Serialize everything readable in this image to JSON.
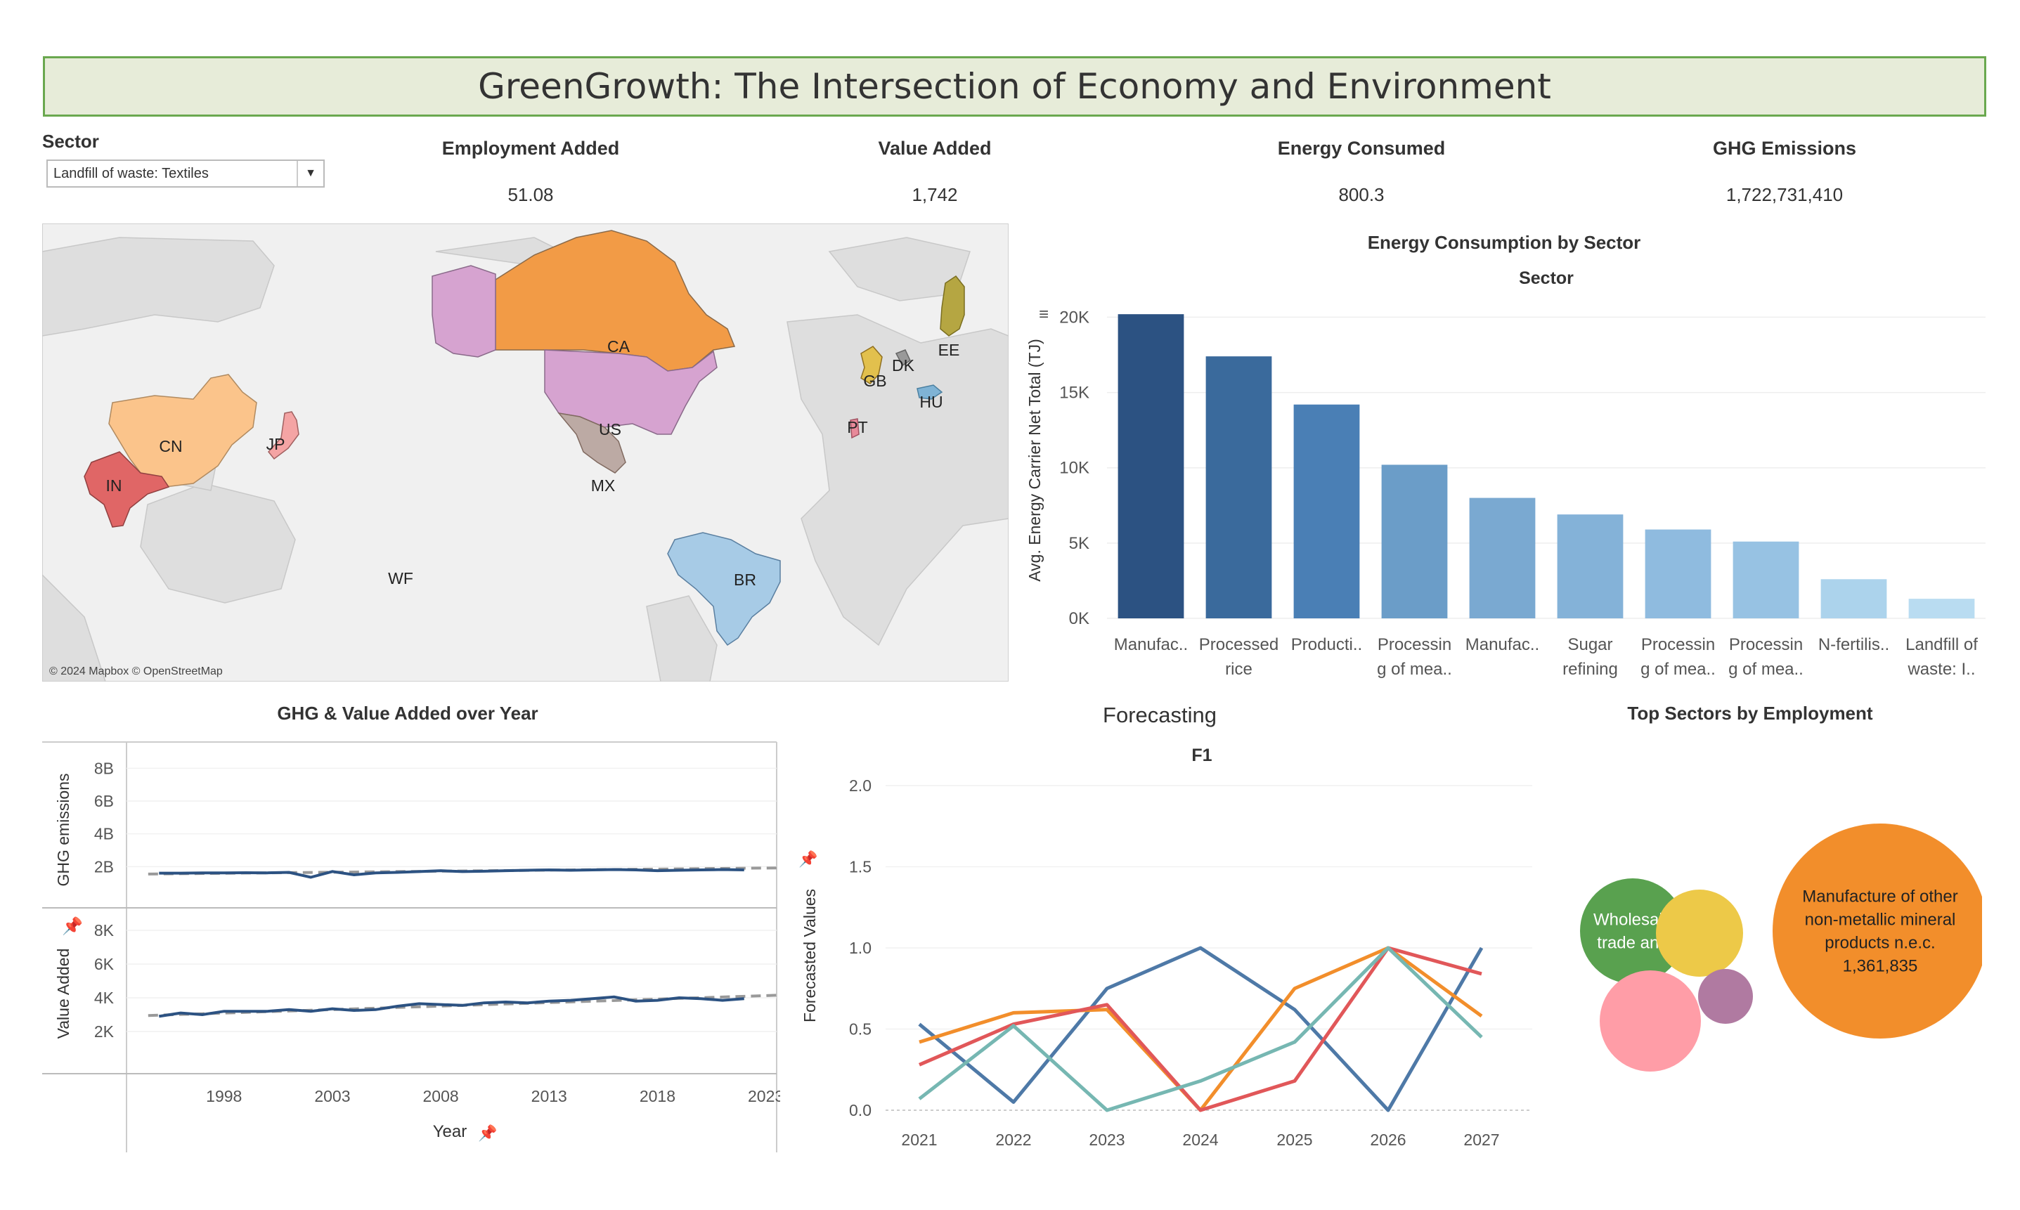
{
  "header": {
    "title": "GreenGrowth: The Intersection of Economy and Environment"
  },
  "filter": {
    "label": "Sector",
    "selected": "Landfill of waste: Textiles"
  },
  "kpis": [
    {
      "label": "Employment Added",
      "value": "51.08"
    },
    {
      "label": "Value Added",
      "value": "1,742"
    },
    {
      "label": "Energy Consumed",
      "value": "800.3"
    },
    {
      "label": "GHG Emissions",
      "value": "1,722,731,410"
    }
  ],
  "map": {
    "attribution": "© 2024 Mapbox © OpenStreetMap",
    "countries": [
      {
        "code": "CA",
        "color": "#f29b46"
      },
      {
        "code": "US",
        "color": "#d6a3d0"
      },
      {
        "code": "MX",
        "color": "#bcaaa4"
      },
      {
        "code": "BR",
        "color": "#a7cbe6"
      },
      {
        "code": "CN",
        "color": "#fbc48b"
      },
      {
        "code": "IN",
        "color": "#e06666"
      },
      {
        "code": "JP",
        "color": "#f4a4a4"
      },
      {
        "code": "WF",
        "color": "#ffffff"
      },
      {
        "code": "GB",
        "color": "#e2c04d"
      },
      {
        "code": "DK",
        "color": "#999999"
      },
      {
        "code": "EE",
        "color": "#b5a642"
      },
      {
        "code": "HU",
        "color": "#7fb3d5"
      },
      {
        "code": "PT",
        "color": "#e88a9a"
      }
    ]
  },
  "energy_chart": {
    "title": "Energy Consumption by Sector",
    "header": "Sector",
    "ylabel": "Avg. Energy Carrier Net Total (TJ)",
    "yticks": [
      "0K",
      "5K",
      "10K",
      "15K",
      "20K"
    ],
    "categories": [
      [
        "Manufac.."
      ],
      [
        "Processed",
        "rice"
      ],
      [
        "Producti.."
      ],
      [
        "Processin",
        "g of mea.."
      ],
      [
        "Manufac.."
      ],
      [
        "Sugar",
        "refining"
      ],
      [
        "Processin",
        "g of mea.."
      ],
      [
        "Processin",
        "g of mea.."
      ],
      [
        "N-fertilis.."
      ],
      [
        "Landfill of",
        "waste: I.."
      ]
    ]
  },
  "chart_data": [
    {
      "type": "bar",
      "title": "Energy Consumption by Sector",
      "xlabel": "Sector",
      "ylabel": "Avg. Energy Carrier Net Total (TJ)",
      "ylim": [
        0,
        21000
      ],
      "categories": [
        "Manufac..",
        "Processed rice",
        "Producti..",
        "Processin g of mea..",
        "Manufac..",
        "Sugar refining",
        "Processin g of mea..",
        "Processin g of mea..",
        "N-fertilis..",
        "Landfill of waste: I.."
      ],
      "values": [
        20200,
        17400,
        14200,
        10200,
        8000,
        6900,
        5900,
        5100,
        2600,
        1300
      ],
      "colors": [
        "#2c5282",
        "#3a6a9c",
        "#4a7fb5",
        "#6b9dc8",
        "#7aa9d1",
        "#84b2d8",
        "#8fbbdf",
        "#97c2e3",
        "#acd3ec",
        "#b9dcf1"
      ]
    },
    {
      "type": "line",
      "title": "GHG & Value Added over Year",
      "xlabel": "Year",
      "xticks": [
        1998,
        2003,
        2008,
        2013,
        2018,
        2023
      ],
      "x": [
        1995,
        1996,
        1997,
        1998,
        1999,
        2000,
        2001,
        2002,
        2003,
        2004,
        2005,
        2006,
        2007,
        2008,
        2009,
        2010,
        2011,
        2012,
        2013,
        2014,
        2015,
        2016,
        2017,
        2018,
        2019,
        2020,
        2021,
        2022
      ],
      "panels": [
        {
          "ylabel": "GHG emissions",
          "yticks": [
            "2B",
            "4B",
            "6B",
            "8B"
          ],
          "ylim": [
            0,
            9000000000
          ],
          "series": [
            {
              "values": [
                1600000000.0,
                1600000000.0,
                1620000000.0,
                1620000000.0,
                1630000000.0,
                1620000000.0,
                1650000000.0,
                1350000000.0,
                1700000000.0,
                1500000000.0,
                1620000000.0,
                1650000000.0,
                1700000000.0,
                1750000000.0,
                1700000000.0,
                1720000000.0,
                1750000000.0,
                1780000000.0,
                1800000000.0,
                1780000000.0,
                1800000000.0,
                1820000000.0,
                1800000000.0,
                1750000000.0,
                1780000000.0,
                1800000000.0,
                1820000000.0,
                1800000000.0
              ]
            }
          ],
          "trend": [
            1550000000.0,
            1920000000.0
          ]
        },
        {
          "ylabel": "Value Added",
          "yticks": [
            "2K",
            "4K",
            "6K",
            "8K"
          ],
          "ylim": [
            0,
            9000
          ],
          "series": [
            {
              "values": [
                2900,
                3100,
                3000,
                3200,
                3200,
                3200,
                3300,
                3200,
                3350,
                3250,
                3300,
                3500,
                3650,
                3600,
                3550,
                3700,
                3750,
                3700,
                3800,
                3850,
                3950,
                4050,
                3800,
                3850,
                4000,
                3950,
                3850,
                3950
              ]
            }
          ],
          "trend": [
            2950,
            4150
          ]
        }
      ]
    },
    {
      "type": "line",
      "title": "Forecasting",
      "subtitle": "F1",
      "ylabel": "Forecasted Values",
      "ylim": [
        0,
        2.0
      ],
      "yticks": [
        "0.0",
        "0.5",
        "1.0",
        "1.5",
        "2.0"
      ],
      "categories": [
        "2021",
        "2022",
        "2023",
        "2024",
        "2025",
        "2026",
        "2027"
      ],
      "series": [
        {
          "color": "#4e79a7",
          "values": [
            0.53,
            0.05,
            0.75,
            1.0,
            0.62,
            0.0,
            1.0
          ]
        },
        {
          "color": "#f28e2b",
          "values": [
            0.42,
            0.6,
            0.62,
            0.0,
            0.75,
            1.0,
            0.58
          ]
        },
        {
          "color": "#e15759",
          "values": [
            0.28,
            0.53,
            0.65,
            0.0,
            0.18,
            1.0,
            0.84
          ]
        },
        {
          "color": "#76b7b2",
          "values": [
            0.07,
            0.52,
            0.0,
            0.18,
            0.42,
            1.0,
            0.45
          ]
        }
      ]
    }
  ],
  "line_chart": {
    "title": "GHG & Value Added over Year",
    "xlabel": "Year",
    "xticks": [
      "1998",
      "2003",
      "2008",
      "2013",
      "2018",
      "2023"
    ],
    "ghg_label": "GHG emissions",
    "va_label": "Value Added",
    "ghg_ticks": [
      "2B",
      "4B",
      "6B",
      "8B"
    ],
    "va_ticks": [
      "2K",
      "4K",
      "6K",
      "8K"
    ]
  },
  "forecast": {
    "title": "Forecasting",
    "subtitle": "F1",
    "ylabel": "Forecasted Values"
  },
  "bubbles": {
    "title": "Top Sectors by Employment",
    "items": [
      {
        "color": "#f28e2b",
        "label_lines": [
          "Manufacture of other",
          "non-metallic mineral",
          "products n.e.c.",
          "1,361,835"
        ],
        "weight": 1361835
      },
      {
        "color": "#59a14f",
        "label_lines": [
          "Wholesale",
          "trade and"
        ]
      },
      {
        "color": "#edc948",
        "label_lines": []
      },
      {
        "color": "#ff9da7",
        "label_lines": []
      },
      {
        "color": "#b07aa1",
        "label_lines": []
      }
    ]
  }
}
